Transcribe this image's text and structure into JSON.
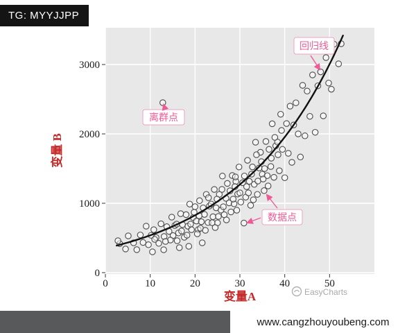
{
  "badge": {
    "text": "TG: MYYJJPP"
  },
  "watermark": {
    "text": "EasyCharts"
  },
  "footer": {
    "url": "www.cangzhouyoubeng.com"
  },
  "colors": {
    "accent_pink": "#ee5a96",
    "axis_title_red": "#c42929",
    "panel_bg": "#e8e8e8",
    "grid_white": "#ffffff",
    "regression_black": "#111111",
    "footer_gray": "#58595b",
    "badge_black": "#141414"
  },
  "chart_data": {
    "type": "scatter",
    "xlabel": "变量A",
    "ylabel": "变量 B",
    "x_ticks": [
      0,
      10,
      20,
      30,
      40,
      50
    ],
    "y_ticks": [
      0,
      1000,
      2000,
      3000
    ],
    "xlim": [
      0,
      60
    ],
    "ylim": [
      -20,
      3530
    ],
    "grid": true,
    "legend": "none",
    "annotations": [
      {
        "id": "outlier",
        "text": "离群点"
      },
      {
        "id": "regression-line",
        "text": "回归线"
      },
      {
        "id": "data-points",
        "text": "数据点"
      }
    ],
    "outlier": [
      12.8,
      2450
    ],
    "regression": {
      "kind": "exponential",
      "formula": "y = 350 * exp(0.043x)",
      "a": 350,
      "b": 0.043,
      "x_min": 2.5,
      "x_max": 53.2
    },
    "points": [
      [
        3.2,
        418
      ],
      [
        4.5,
        341
      ],
      [
        5.1,
        530
      ],
      [
        6.3,
        430
      ],
      [
        7.0,
        331
      ],
      [
        7.8,
        543
      ],
      [
        8.4,
        435
      ],
      [
        9.1,
        670
      ],
      [
        9.6,
        402
      ],
      [
        10.2,
        538
      ],
      [
        10.8,
        619
      ],
      [
        11.3,
        506
      ],
      [
        11.9,
        422
      ],
      [
        12.4,
        704
      ],
      [
        13.1,
        521
      ],
      [
        13.7,
        662
      ],
      [
        14.2,
        595
      ],
      [
        14.8,
        800
      ],
      [
        15.1,
        534
      ],
      [
        15.5,
        680
      ],
      [
        15.9,
        700
      ],
      [
        16.3,
        572
      ],
      [
        16.8,
        850
      ],
      [
        17.2,
        692
      ],
      [
        17.6,
        510
      ],
      [
        18.0,
        836
      ],
      [
        18.4,
        669
      ],
      [
        18.8,
        988
      ],
      [
        19.2,
        619
      ],
      [
        19.6,
        793
      ],
      [
        20.0,
        951
      ],
      [
        20.3,
        744
      ],
      [
        20.7,
        620
      ],
      [
        21.0,
        1037
      ],
      [
        21.4,
        734
      ],
      [
        21.8,
        933
      ],
      [
        22.1,
        839
      ],
      [
        22.5,
        1128
      ],
      [
        22.9,
        722
      ],
      [
        23.2,
        960
      ],
      [
        23.6,
        988
      ],
      [
        24.0,
        806
      ],
      [
        24.3,
        1199
      ],
      [
        24.7,
        934
      ],
      [
        25.0,
        718
      ],
      [
        25.4,
        1128
      ],
      [
        25.8,
        902
      ],
      [
        26.1,
        1392
      ],
      [
        26.5,
        835
      ],
      [
        26.9,
        1071
      ],
      [
        27.2,
        1286
      ],
      [
        27.6,
        1006
      ],
      [
        28.0,
        875
      ],
      [
        28.3,
        1400
      ],
      [
        28.7,
        992
      ],
      [
        29.1,
        1315
      ],
      [
        29.5,
        1133
      ],
      [
        29.8,
        1523
      ],
      [
        30.2,
        1017
      ],
      [
        30.6,
        1296
      ],
      [
        31.0,
        1393
      ],
      [
        31.3,
        1088
      ],
      [
        31.7,
        1619
      ],
      [
        32.1,
        1316
      ],
      [
        32.4,
        970
      ],
      [
        32.8,
        1524
      ],
      [
        33.2,
        1272
      ],
      [
        33.5,
        1880
      ],
      [
        33.9,
        1128
      ],
      [
        34.3,
        1509
      ],
      [
        34.6,
        1735
      ],
      [
        35.0,
        1418
      ],
      [
        35.4,
        1182
      ],
      [
        35.8,
        1891
      ],
      [
        36.1,
        1398
      ],
      [
        36.5,
        1777
      ],
      [
        36.9,
        1530
      ],
      [
        37.2,
        2146
      ],
      [
        37.6,
        1374
      ],
      [
        38.0,
        1828
      ],
      [
        38.4,
        1882
      ],
      [
        38.8,
        1469
      ],
      [
        39.1,
        2283
      ],
      [
        39.5,
        1777
      ],
      [
        40.0,
        1368
      ],
      [
        40.4,
        2149
      ],
      [
        40.8,
        1720
      ],
      [
        41.2,
        2400
      ],
      [
        41.6,
        1590
      ],
      [
        42.0,
        2129
      ],
      [
        42.5,
        2448
      ],
      [
        43.0,
        2000
      ],
      [
        43.5,
        1667
      ],
      [
        44.0,
        2700
      ],
      [
        44.5,
        1972
      ],
      [
        45.0,
        2617
      ],
      [
        45.6,
        2253
      ],
      [
        46.2,
        2850
      ],
      [
        46.8,
        2023
      ],
      [
        47.4,
        2693
      ],
      [
        48.0,
        2894
      ],
      [
        48.6,
        2260
      ],
      [
        49.2,
        3100
      ],
      [
        49.8,
        2733
      ],
      [
        50.4,
        2644
      ],
      [
        51.0,
        3293
      ],
      [
        52.0,
        3010
      ],
      [
        52.6,
        3300
      ],
      [
        18.2,
        540
      ],
      [
        19.0,
        700
      ],
      [
        20.5,
        560
      ],
      [
        21.2,
        640
      ],
      [
        22.3,
        610
      ],
      [
        23.8,
        720
      ],
      [
        24.5,
        650
      ],
      [
        25.2,
        810
      ],
      [
        26.3,
        950
      ],
      [
        27.0,
        760
      ],
      [
        27.8,
        1180
      ],
      [
        28.5,
        1060
      ],
      [
        29.3,
        900
      ],
      [
        30.0,
        1150
      ],
      [
        30.9,
        715
      ],
      [
        31.5,
        1240
      ],
      [
        32.6,
        1420
      ],
      [
        33.0,
        1050
      ],
      [
        34.0,
        1320
      ],
      [
        34.8,
        1600
      ],
      [
        35.5,
        1500
      ],
      [
        36.3,
        1250
      ],
      [
        37.0,
        1650
      ],
      [
        37.8,
        1950
      ],
      [
        38.5,
        1700
      ],
      [
        39.3,
        2050
      ],
      [
        16.0,
        460
      ],
      [
        17.0,
        600
      ],
      [
        19.8,
        870
      ],
      [
        23.0,
        1080
      ],
      [
        26.0,
        1200
      ],
      [
        29.0,
        1380
      ],
      [
        31.9,
        1150
      ],
      [
        33.7,
        1700
      ],
      [
        20.9,
        820
      ],
      [
        24.9,
        1060
      ],
      [
        28.9,
        1240
      ],
      [
        14.5,
        470
      ],
      [
        13.4,
        450
      ],
      [
        11.0,
        480
      ],
      [
        35.2,
        1350
      ],
      [
        13.0,
        330
      ],
      [
        16.5,
        360
      ],
      [
        18.6,
        380
      ],
      [
        21.6,
        430
      ],
      [
        10.5,
        300
      ],
      [
        2.8,
        460
      ]
    ]
  }
}
